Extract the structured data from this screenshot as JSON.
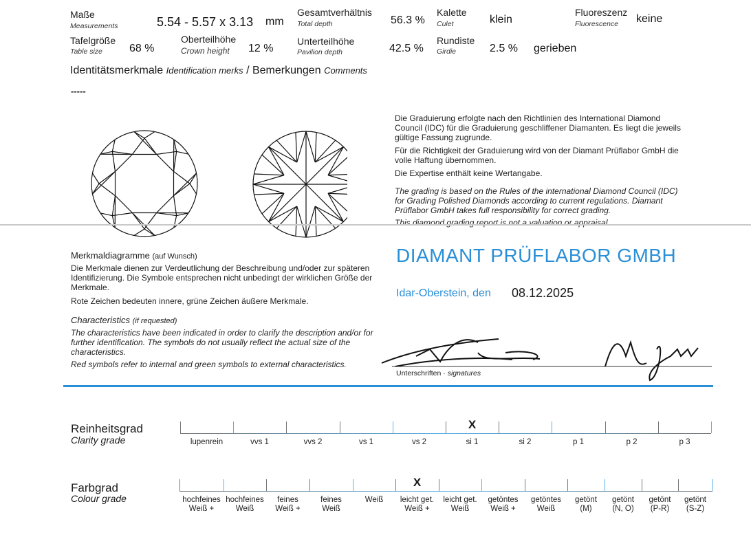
{
  "specs": {
    "measurements": {
      "label": "Maße",
      "sub": "Measurements",
      "value": "5.54 - 5.57 x 3.13",
      "unit": "mm"
    },
    "total_depth": {
      "label": "Gesamtverhältnis",
      "sub": "Total depth",
      "value": "56.3 %"
    },
    "culet": {
      "label": "Kalette",
      "sub": "Culet",
      "value": "klein"
    },
    "fluorescence": {
      "label": "Fluoreszenz",
      "sub": "Fluorescence",
      "value": "keine"
    },
    "table_size": {
      "label": "Tafelgröße",
      "sub": "Table size",
      "value": "68 %"
    },
    "crown_height": {
      "label": "Oberteilhöhe",
      "sub": "Crown height",
      "value": "12 %"
    },
    "pavilion_depth": {
      "label": "Unterteilhöhe",
      "sub": "Pavilion depth",
      "value": "42.5 %"
    },
    "girdle": {
      "label": "Rundiste",
      "sub": "Girdie",
      "value": "2.5 %",
      "extra": "gerieben"
    }
  },
  "comments": {
    "heading_de": "Identitätsmerkmale",
    "heading_en": "Identification merks",
    "sep": "/",
    "heading2_de": "Bemerkungen",
    "heading2_en": "Comments",
    "value": "-----"
  },
  "legal": {
    "p1": "Die Graduierung erfolgte nach den Richtlinien des International Diamond Council (IDC) für die Graduierung geschliffener Diamanten. Es liegt die jeweils gültige Fassung zugrunde.",
    "p2": "Für die Richtigkeit der Graduierung wird von der Diamant Prüflabor GmbH die volle Haftung übernommen.",
    "p3": "Die Expertise enthält keine Wertangabe.",
    "p4": "The grading is based on the Rules of the international Diamond Council (IDC) for Grading Polished Diamonds according to current regulations. Diamant Prüflabor GmbH takes full responsibility for correct grading.",
    "p5": "This diamond grading report is not a valuation or appraisal."
  },
  "characteristics": {
    "title_de": "Merkmaldiagramme",
    "title_de_note": "(auf Wunsch)",
    "text_de": "Die Merkmale dienen zur Verdeutlichung der Beschreibung und/oder zur späteren Identifizierung. Die Symbole entsprechen nicht unbedingt der wirklichen Größe der Merkmale.",
    "text_de2": "Rote Zeichen bedeuten innere, grüne Zeichen äußere Merkmale.",
    "title_en": "Characteristics",
    "title_en_note": "(if requested)",
    "text_en": "The characteristics have been indicated in order to clarify the description and/or for further identification. The symbols do not usually reflect the actual size of the characteristics.",
    "text_en2": "Red symbols refer to internal and green symbols to external characteristics."
  },
  "lab": {
    "name": "Diamant PrüfLabor GmbH",
    "place": "Idar-Oberstein, den",
    "date": "08.12.2025",
    "signatures_label": "Unterschriften ·",
    "signatures_en": "signatures",
    "brand_color": "#2a8fd6"
  },
  "clarity": {
    "label_de": "Reinheitsgrad",
    "label_en": "Clarity grade",
    "marker": "X",
    "selected_index": 5,
    "grades": [
      "lupenrein",
      "vvs 1",
      "vvs 2",
      "vs 1",
      "vs 2",
      "si 1",
      "si 2",
      "p 1",
      "p 2",
      "p 3"
    ]
  },
  "colour": {
    "label_de": "Farbgrad",
    "label_en": "Colour grade",
    "marker": "X",
    "selected_index": 5,
    "grades": [
      [
        "hochfeines",
        "Weiß +"
      ],
      [
        "hochfeines",
        "Weiß"
      ],
      [
        "feines",
        "Weiß +"
      ],
      [
        "feines",
        "Weiß"
      ],
      [
        "Weiß",
        ""
      ],
      [
        "leicht get.",
        "Weiß +"
      ],
      [
        "leicht get.",
        "Weiß"
      ],
      [
        "getöntes",
        "Weiß +"
      ],
      [
        "getöntes",
        "Weiß"
      ],
      [
        "getönt",
        "(M)"
      ],
      [
        "getönt",
        "(N, O)"
      ],
      [
        "getönt",
        "(P-R)"
      ],
      [
        "getönt",
        "(S-Z)"
      ]
    ]
  }
}
